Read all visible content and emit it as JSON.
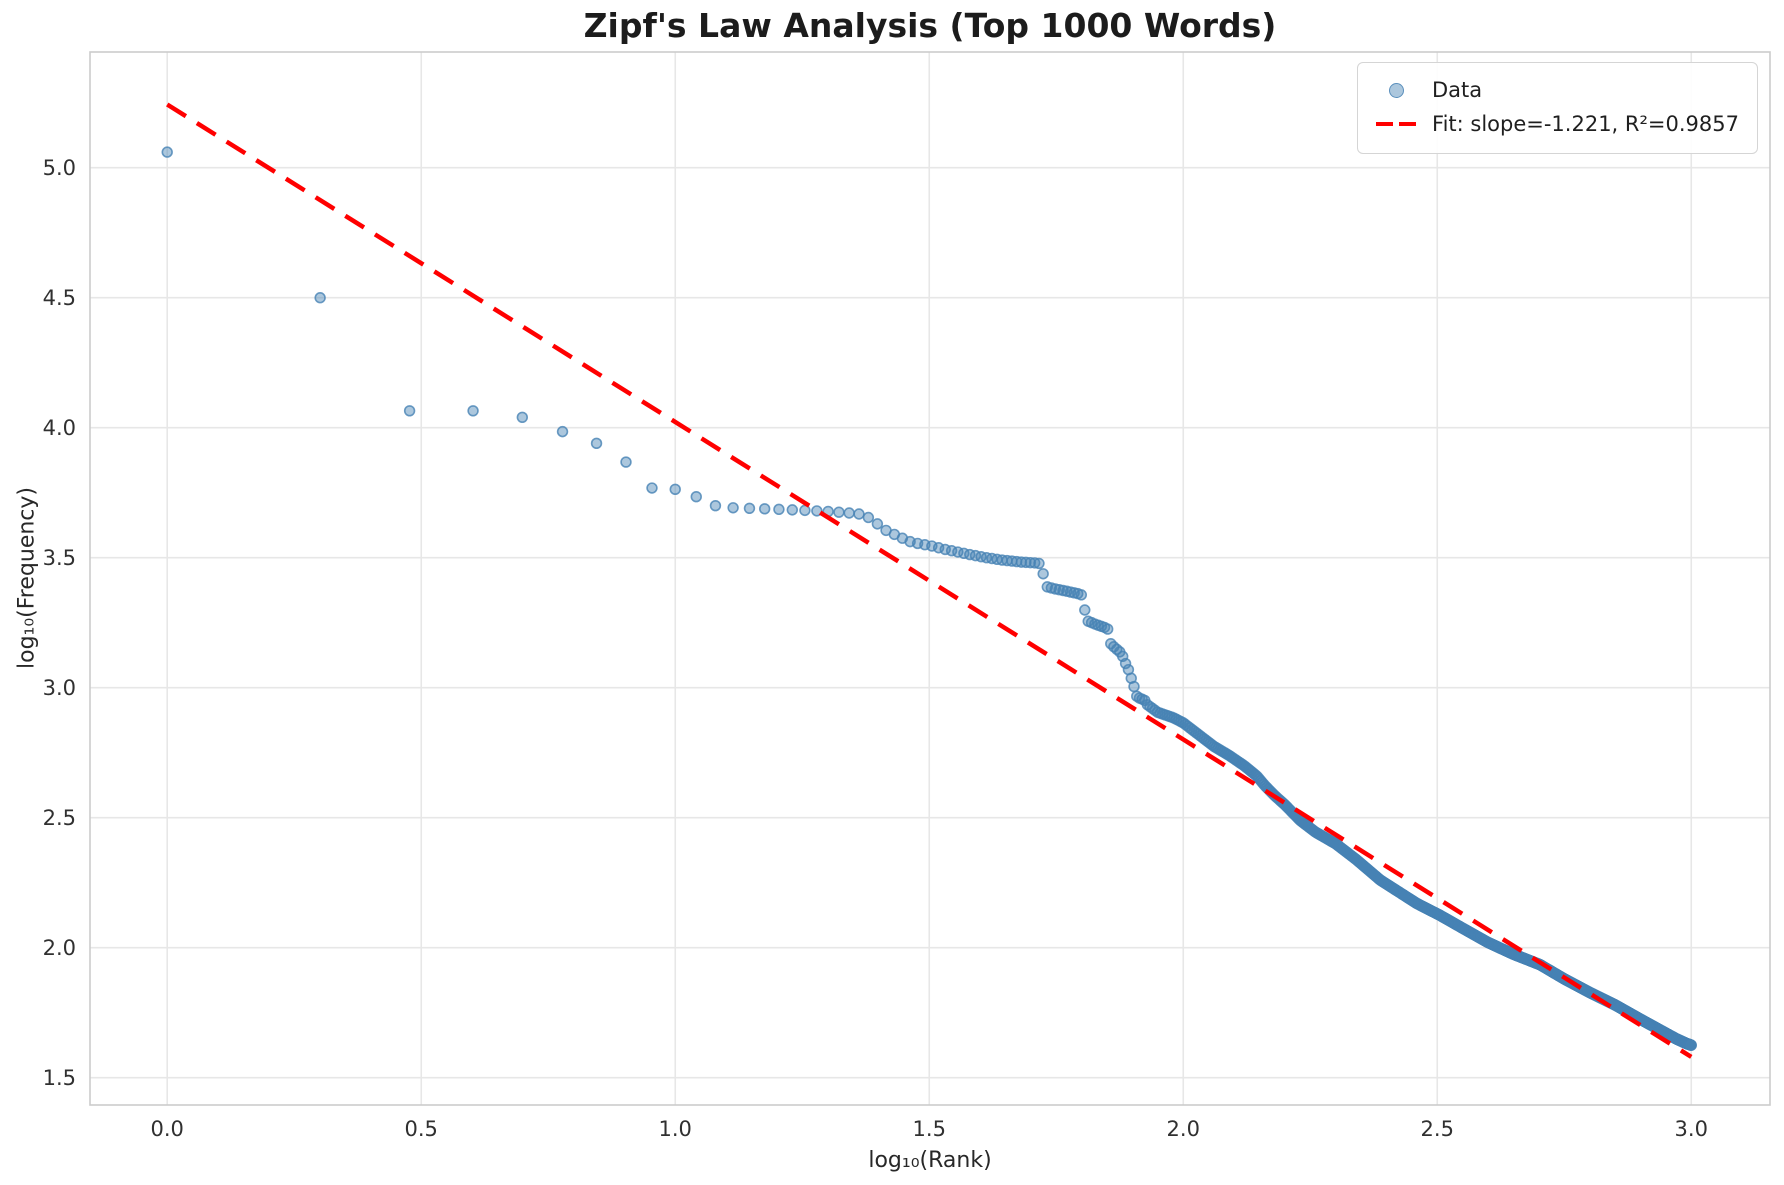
{
  "chart_data": {
    "type": "scatter",
    "title": "Zipf's Law Analysis (Top 1000 Words)",
    "xlabel": "log₁₀(Rank)",
    "ylabel": "log₁₀(Frequency)",
    "xlim": [
      -0.152,
      3.155
    ],
    "ylim": [
      1.395,
      5.445
    ],
    "xticks": [
      0.0,
      0.5,
      1.0,
      1.5,
      2.0,
      2.5,
      3.0
    ],
    "xtick_labels": [
      "0.0",
      "0.5",
      "1.0",
      "1.5",
      "2.0",
      "2.5",
      "3.0"
    ],
    "yticks": [
      1.5,
      2.0,
      2.5,
      3.0,
      3.5,
      4.0,
      4.5,
      5.0
    ],
    "ytick_labels": [
      "1.5",
      "2.0",
      "2.5",
      "3.0",
      "3.5",
      "4.0",
      "4.5",
      "5.0"
    ],
    "grid": true,
    "grid_color": "#e7e7e7",
    "spine_color": "#cccccc",
    "legend_position": "upper right",
    "n_points": 1000,
    "series": [
      {
        "name": "Data",
        "type": "scatter",
        "color": "#4682b4",
        "marker_fill": "rgba(70,130,180,0.45)",
        "marker_edge": "rgba(70,130,180,0.8)",
        "points": [
          [
            0.0,
            5.06
          ],
          [
            0.301,
            4.5
          ],
          [
            0.477,
            4.065
          ],
          [
            0.602,
            4.065
          ],
          [
            0.699,
            4.04
          ],
          [
            0.778,
            3.985
          ],
          [
            0.845,
            3.94
          ],
          [
            0.903,
            3.868
          ],
          [
            0.954,
            3.768
          ],
          [
            1.0,
            3.763
          ],
          [
            1.041,
            3.735
          ],
          [
            1.079,
            3.7
          ],
          [
            1.114,
            3.692
          ],
          [
            1.146,
            3.69
          ],
          [
            1.176,
            3.688
          ],
          [
            1.204,
            3.686
          ],
          [
            1.23,
            3.684
          ],
          [
            1.255,
            3.682
          ],
          [
            1.279,
            3.68
          ],
          [
            1.301,
            3.678
          ],
          [
            1.322,
            3.675
          ],
          [
            1.342,
            3.672
          ],
          [
            1.362,
            3.668
          ],
          [
            1.38,
            3.655
          ],
          [
            1.398,
            3.63
          ],
          [
            1.415,
            3.605
          ],
          [
            1.431,
            3.59
          ],
          [
            1.447,
            3.575
          ],
          [
            1.462,
            3.562
          ],
          [
            1.477,
            3.555
          ],
          [
            1.491,
            3.55
          ],
          [
            1.505,
            3.545
          ],
          [
            1.519,
            3.538
          ],
          [
            1.531,
            3.532
          ],
          [
            1.544,
            3.527
          ],
          [
            1.556,
            3.522
          ],
          [
            1.568,
            3.517
          ],
          [
            1.58,
            3.512
          ],
          [
            1.591,
            3.508
          ],
          [
            1.602,
            3.504
          ],
          [
            1.613,
            3.5
          ],
          [
            1.623,
            3.497
          ],
          [
            1.633,
            3.494
          ],
          [
            1.643,
            3.491
          ],
          [
            1.653,
            3.489
          ],
          [
            1.663,
            3.487
          ],
          [
            1.672,
            3.485
          ],
          [
            1.681,
            3.483
          ],
          [
            1.69,
            3.482
          ],
          [
            1.699,
            3.481
          ],
          [
            1.708,
            3.48
          ],
          [
            1.716,
            3.478
          ],
          [
            1.724,
            3.44
          ],
          [
            1.732,
            3.388
          ],
          [
            1.74,
            3.384
          ],
          [
            1.748,
            3.38
          ],
          [
            1.756,
            3.377
          ],
          [
            1.763,
            3.374
          ],
          [
            1.771,
            3.371
          ],
          [
            1.778,
            3.368
          ],
          [
            1.785,
            3.365
          ],
          [
            1.792,
            3.362
          ],
          [
            1.799,
            3.36
          ],
          [
            1.806,
            3.3
          ],
          [
            1.813,
            3.255
          ],
          [
            1.82,
            3.25
          ],
          [
            1.826,
            3.245
          ],
          [
            1.833,
            3.24
          ],
          [
            1.839,
            3.236
          ],
          [
            1.845,
            3.232
          ],
          [
            1.851,
            3.228
          ],
          [
            1.857,
            3.17
          ],
          [
            1.863,
            3.158
          ],
          [
            1.869,
            3.148
          ],
          [
            1.875,
            3.138
          ],
          [
            1.881,
            3.12
          ],
          [
            1.886,
            3.095
          ],
          [
            1.892,
            3.07
          ],
          [
            1.897,
            3.04
          ],
          [
            1.903,
            3.005
          ],
          [
            1.908,
            2.968
          ],
          [
            1.914,
            2.96
          ],
          [
            1.919,
            2.956
          ],
          [
            1.924,
            2.952
          ],
          [
            1.929,
            2.935
          ],
          [
            1.95,
            2.905
          ],
          [
            1.98,
            2.885
          ],
          [
            2.0,
            2.865
          ],
          [
            2.03,
            2.82
          ],
          [
            2.06,
            2.775
          ],
          [
            2.09,
            2.74
          ],
          [
            2.12,
            2.7
          ],
          [
            2.145,
            2.66
          ],
          [
            2.16,
            2.625
          ],
          [
            2.18,
            2.585
          ],
          [
            2.2,
            2.55
          ],
          [
            2.23,
            2.49
          ],
          [
            2.26,
            2.445
          ],
          [
            2.3,
            2.4
          ],
          [
            2.34,
            2.34
          ],
          [
            2.388,
            2.26
          ],
          [
            2.42,
            2.22
          ],
          [
            2.46,
            2.17
          ],
          [
            2.505,
            2.125
          ],
          [
            2.55,
            2.075
          ],
          [
            2.6,
            2.02
          ],
          [
            2.65,
            1.975
          ],
          [
            2.702,
            1.935
          ],
          [
            2.75,
            1.88
          ],
          [
            2.8,
            1.828
          ],
          [
            2.85,
            1.78
          ],
          [
            2.9,
            1.725
          ],
          [
            2.94,
            1.682
          ],
          [
            2.97,
            1.65
          ],
          [
            2.99,
            1.632
          ],
          [
            3.0,
            1.625
          ]
        ]
      },
      {
        "name": "Fit",
        "type": "line",
        "color": "#ff0000",
        "dashed": true,
        "slope": -1.221,
        "intercept": 5.243,
        "r_squared": 0.9857,
        "x_range": [
          0.0,
          3.0
        ]
      }
    ],
    "legend": [
      {
        "label": "Data",
        "marker": "circle",
        "color": "#4682b4"
      },
      {
        "label": "Fit: slope=-1.221, R²=0.9857",
        "marker": "dashed-line",
        "color": "#ff0000"
      }
    ]
  }
}
